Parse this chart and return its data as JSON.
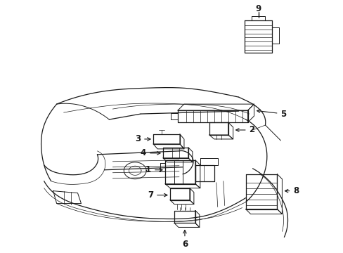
{
  "background_color": "#ffffff",
  "line_color": "#1a1a1a",
  "lw_main": 0.9,
  "lw_thin": 0.5,
  "lw_medium": 0.7,
  "fig_width": 4.89,
  "fig_height": 3.6,
  "dpi": 100
}
